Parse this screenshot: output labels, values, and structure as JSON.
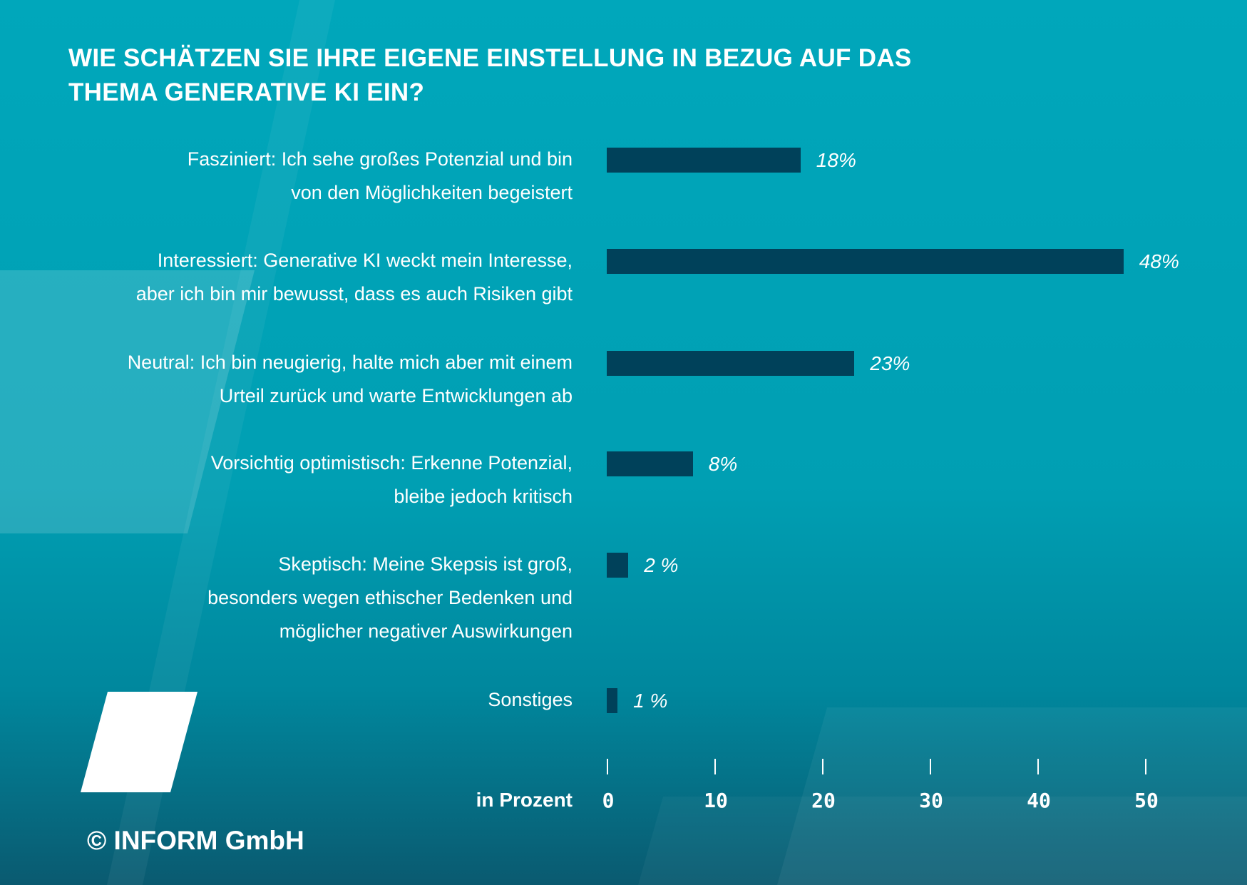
{
  "chart_data": {
    "type": "bar",
    "orientation": "horizontal",
    "title": "WIE SCHÄTZEN SIE IHRE EIGENE EINSTELLUNG IN BEZUG AUF DAS THEMA GENERATIVE KI EIN?",
    "categories": [
      "Fasziniert: Ich sehe großes Potenzial und bin\nvon den Möglichkeiten begeistert",
      "Interessiert: Generative KI weckt mein Interesse,\naber ich bin mir bewusst, dass es auch Risiken gibt",
      "Neutral: Ich bin neugierig, halte mich aber mit einem\nUrteil zurück und warte Entwicklungen ab",
      "Vorsichtig optimistisch: Erkenne Potenzial,\nbleibe jedoch kritisch",
      "Skeptisch: Meine Skepsis ist groß,\nbesonders wegen ethischer Bedenken und\nmöglicher negativer Auswirkungen",
      "Sonstiges"
    ],
    "values": [
      18,
      48,
      23,
      8,
      2,
      1
    ],
    "data_labels": [
      "18%",
      "48%",
      "23%",
      "8%",
      "2 %",
      "1 %"
    ],
    "xlabel": "in Prozent",
    "xlim": [
      0,
      50
    ],
    "xticks": [
      "0",
      "10",
      "20",
      "30",
      "40",
      "50"
    ],
    "grid": false,
    "colors": {
      "bar": "#00415a",
      "background": "#00a3b7",
      "text": "#ffffff"
    }
  },
  "copyright": "© INFORM GmbH"
}
